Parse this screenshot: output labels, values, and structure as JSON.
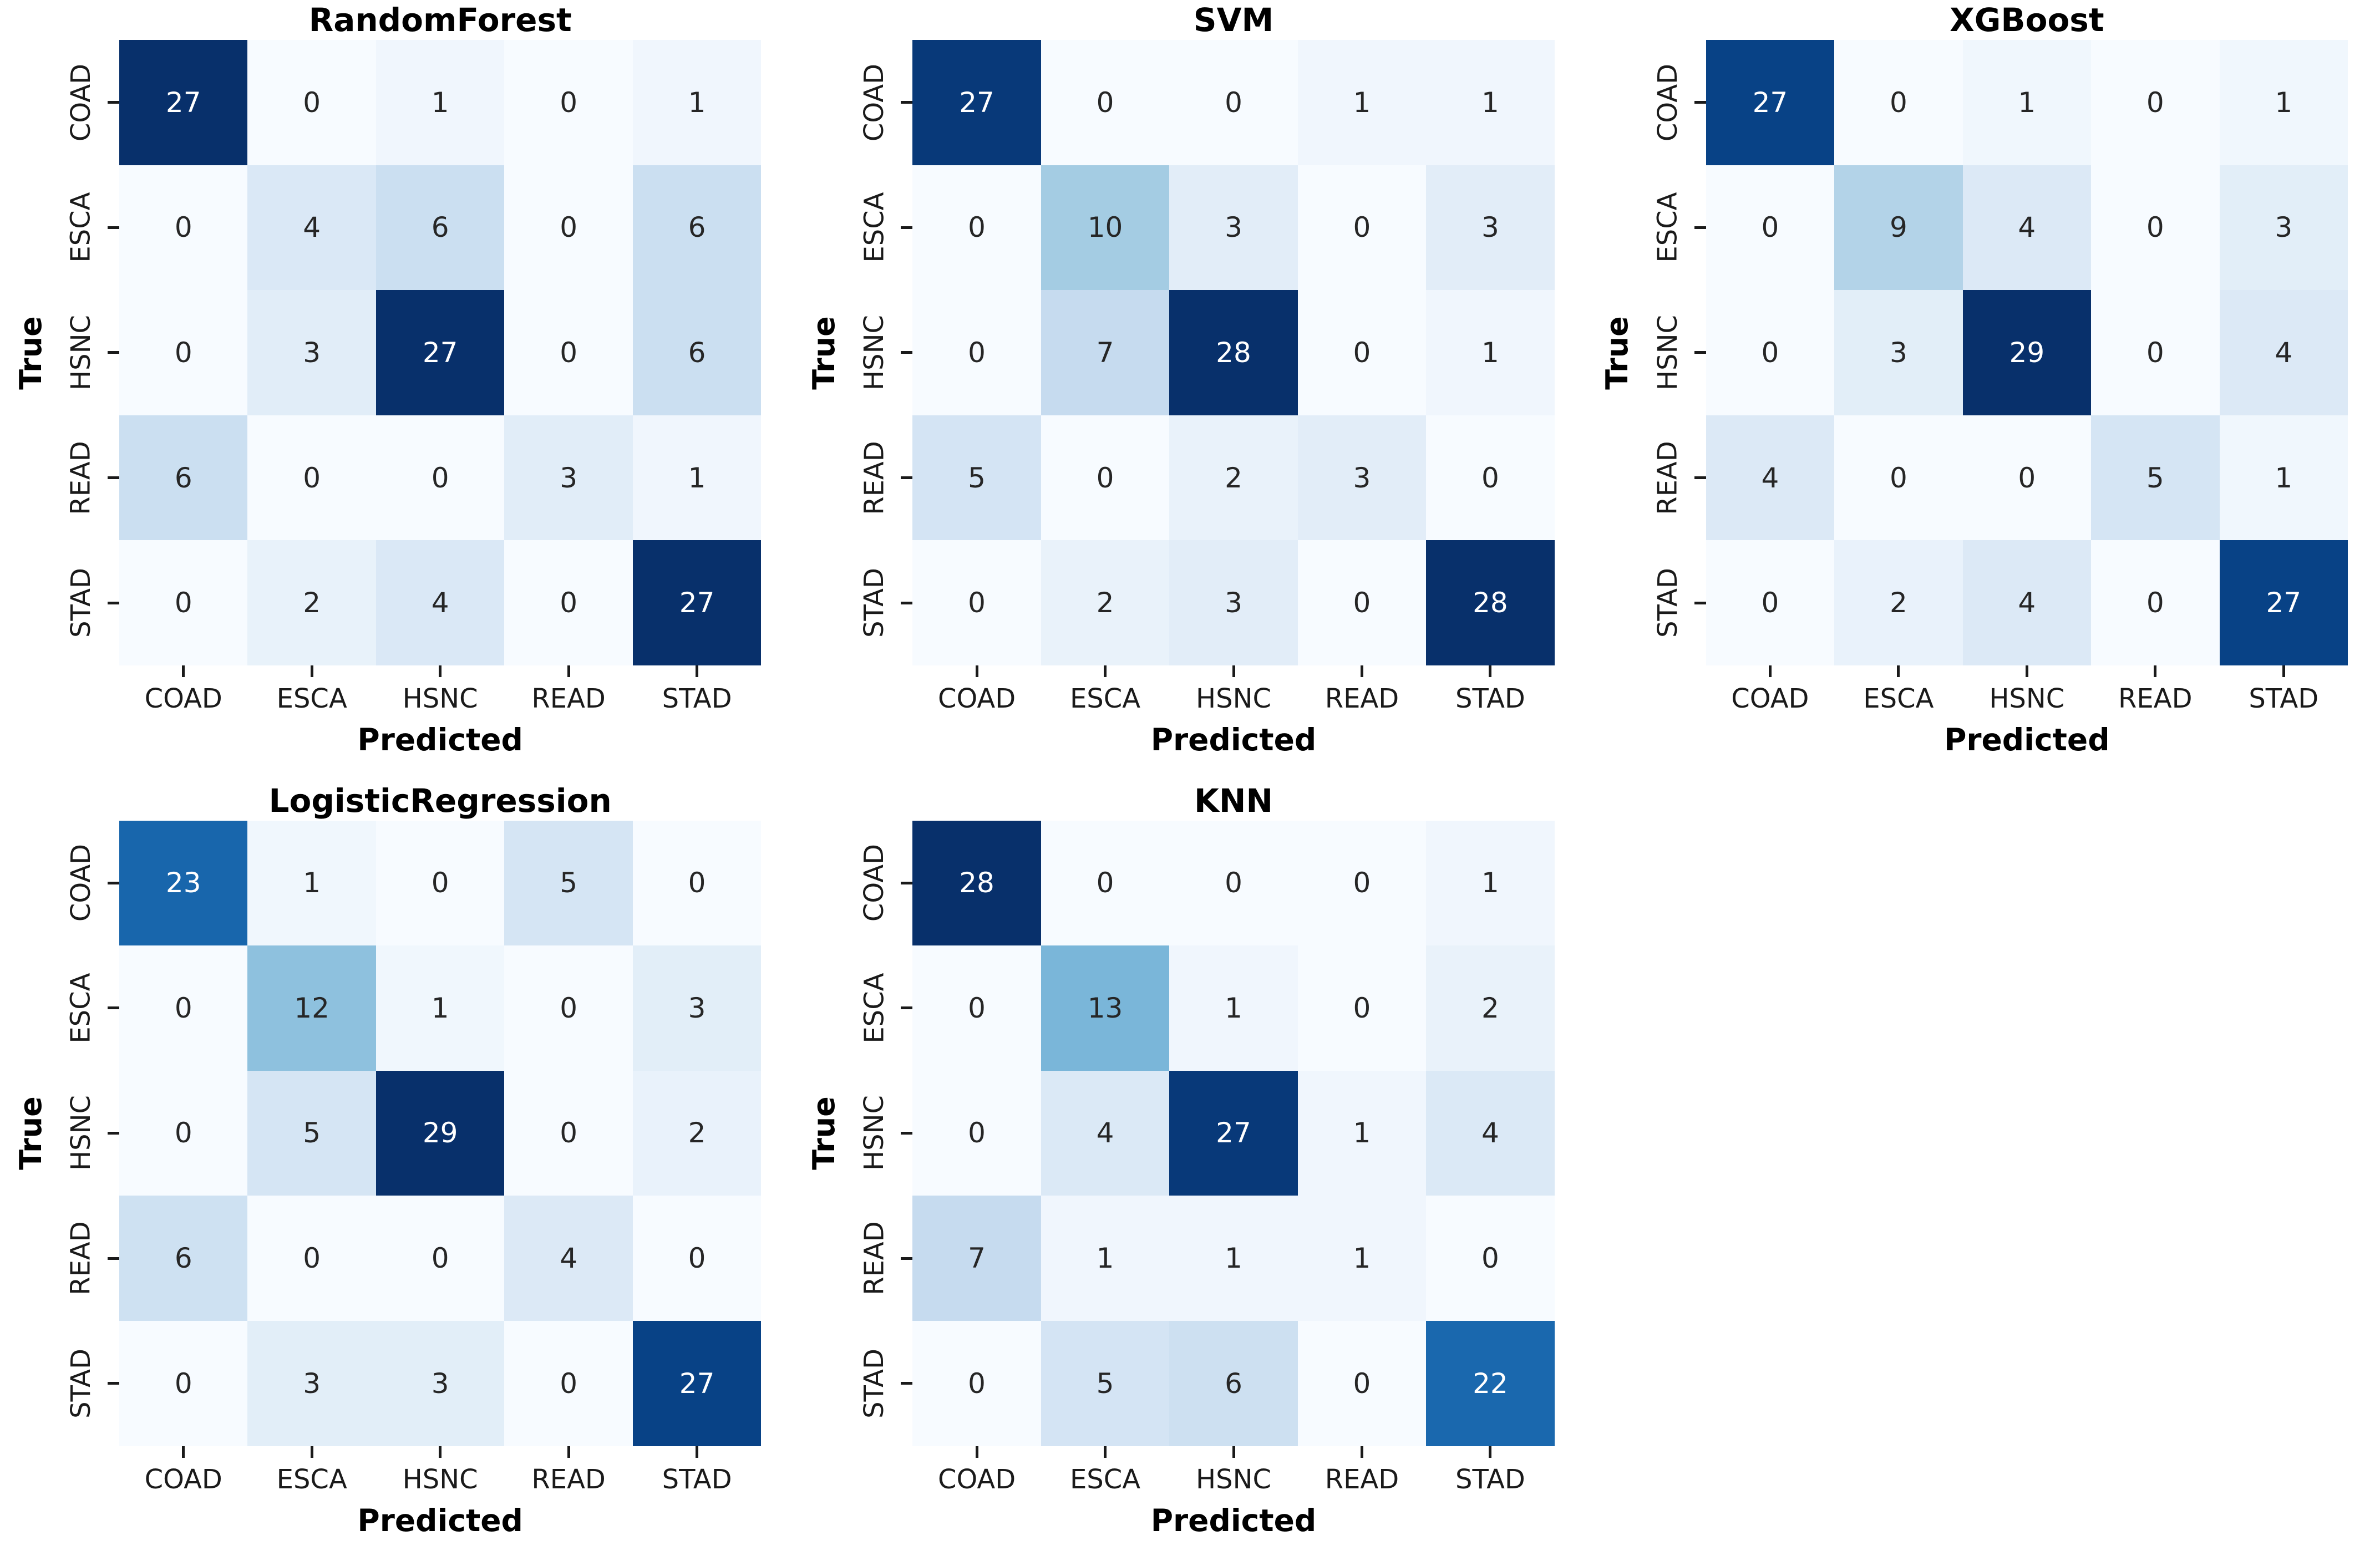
{
  "figure": {
    "background": "#ffffff",
    "colormap": "Blues",
    "dark_blue": "#08306b",
    "light_blue": "#f7fbff",
    "text_dark": "#262626",
    "text_light": "#ffffff"
  },
  "chart_data": [
    {
      "type": "heatmap",
      "title": "RandomForest",
      "xlabel": "Predicted",
      "ylabel": "True",
      "x_categories": [
        "COAD",
        "ESCA",
        "HSNC",
        "READ",
        "STAD"
      ],
      "y_categories": [
        "COAD",
        "ESCA",
        "HSNC",
        "READ",
        "STAD"
      ],
      "values": [
        [
          27,
          0,
          1,
          0,
          1
        ],
        [
          0,
          4,
          6,
          0,
          6
        ],
        [
          0,
          3,
          27,
          0,
          6
        ],
        [
          6,
          0,
          0,
          3,
          1
        ],
        [
          0,
          2,
          4,
          0,
          27
        ]
      ],
      "vmin": 0,
      "vmax": 27,
      "colormap": "Blues",
      "annotated": true,
      "legend": "none",
      "grid": "off"
    },
    {
      "type": "heatmap",
      "title": "SVM",
      "xlabel": "Predicted",
      "ylabel": "True",
      "x_categories": [
        "COAD",
        "ESCA",
        "HSNC",
        "READ",
        "STAD"
      ],
      "y_categories": [
        "COAD",
        "ESCA",
        "HSNC",
        "READ",
        "STAD"
      ],
      "values": [
        [
          27,
          0,
          0,
          1,
          1
        ],
        [
          0,
          10,
          3,
          0,
          3
        ],
        [
          0,
          7,
          28,
          0,
          1
        ],
        [
          5,
          0,
          2,
          3,
          0
        ],
        [
          0,
          2,
          3,
          0,
          28
        ]
      ],
      "vmin": 0,
      "vmax": 28,
      "colormap": "Blues",
      "annotated": true,
      "legend": "none",
      "grid": "off"
    },
    {
      "type": "heatmap",
      "title": "XGBoost",
      "xlabel": "Predicted",
      "ylabel": "True",
      "x_categories": [
        "COAD",
        "ESCA",
        "HSNC",
        "READ",
        "STAD"
      ],
      "y_categories": [
        "COAD",
        "ESCA",
        "HSNC",
        "READ",
        "STAD"
      ],
      "values": [
        [
          27,
          0,
          1,
          0,
          1
        ],
        [
          0,
          9,
          4,
          0,
          3
        ],
        [
          0,
          3,
          29,
          0,
          4
        ],
        [
          4,
          0,
          0,
          5,
          1
        ],
        [
          0,
          2,
          4,
          0,
          27
        ]
      ],
      "vmin": 0,
      "vmax": 29,
      "colormap": "Blues",
      "annotated": true,
      "legend": "none",
      "grid": "off"
    },
    {
      "type": "heatmap",
      "title": "LogisticRegression",
      "xlabel": "Predicted",
      "ylabel": "True",
      "x_categories": [
        "COAD",
        "ESCA",
        "HSNC",
        "READ",
        "STAD"
      ],
      "y_categories": [
        "COAD",
        "ESCA",
        "HSNC",
        "READ",
        "STAD"
      ],
      "values": [
        [
          23,
          1,
          0,
          5,
          0
        ],
        [
          0,
          12,
          1,
          0,
          3
        ],
        [
          0,
          5,
          29,
          0,
          2
        ],
        [
          6,
          0,
          0,
          4,
          0
        ],
        [
          0,
          3,
          3,
          0,
          27
        ]
      ],
      "vmin": 0,
      "vmax": 29,
      "colormap": "Blues",
      "annotated": true,
      "legend": "none",
      "grid": "off"
    },
    {
      "type": "heatmap",
      "title": "KNN",
      "xlabel": "Predicted",
      "ylabel": "True",
      "x_categories": [
        "COAD",
        "ESCA",
        "HSNC",
        "READ",
        "STAD"
      ],
      "y_categories": [
        "COAD",
        "ESCA",
        "HSNC",
        "READ",
        "STAD"
      ],
      "values": [
        [
          28,
          0,
          0,
          0,
          1
        ],
        [
          0,
          13,
          1,
          0,
          2
        ],
        [
          0,
          4,
          27,
          1,
          4
        ],
        [
          7,
          1,
          1,
          1,
          0
        ],
        [
          0,
          5,
          6,
          0,
          22
        ]
      ],
      "vmin": 0,
      "vmax": 28,
      "colormap": "Blues",
      "annotated": true,
      "legend": "none",
      "grid": "off"
    }
  ]
}
